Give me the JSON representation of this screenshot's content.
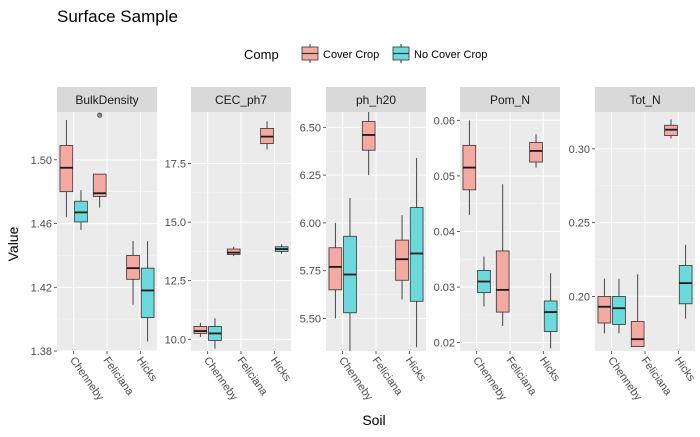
{
  "chart_data": {
    "type": "boxplot",
    "title": "Surface Sample",
    "xlabel": "Soil",
    "ylabel": "Value",
    "legend": {
      "title": "Comp",
      "position": "top",
      "entries": [
        {
          "name": "Cover Crop",
          "color": "#F8766D",
          "fill": "#F4A9A3"
        },
        {
          "name": "No Cover Crop",
          "color": "#00BFC4",
          "fill": "#6CD9DC"
        }
      ]
    },
    "categories": [
      "Chenneby",
      "Feliciana",
      "Hicks"
    ],
    "grid": true,
    "panels": [
      {
        "name": "BulkDensity",
        "ylim": [
          1.38,
          1.53
        ],
        "yticks": [
          1.38,
          1.42,
          1.46,
          1.5
        ],
        "yticklabels": [
          "1.38",
          "1.42",
          "1.46",
          "1.50"
        ],
        "boxes": [
          {
            "category": "Chenneby",
            "series": "Cover Crop",
            "min": 1.464,
            "q1": 1.48,
            "median": 1.495,
            "q3": 1.509,
            "max": 1.525
          },
          {
            "category": "Chenneby",
            "series": "No Cover Crop",
            "min": 1.456,
            "q1": 1.461,
            "median": 1.467,
            "q3": 1.474,
            "max": 1.481
          },
          {
            "category": "Feliciana",
            "series": "Cover Crop",
            "min": 1.47,
            "q1": 1.477,
            "median": 1.479,
            "q3": 1.491,
            "max": 1.491,
            "outliers": [
              1.528
            ]
          },
          {
            "category": "Hicks",
            "series": "Cover Crop",
            "min": 1.409,
            "q1": 1.425,
            "median": 1.432,
            "q3": 1.44,
            "max": 1.449
          },
          {
            "category": "Hicks",
            "series": "No Cover Crop",
            "min": 1.386,
            "q1": 1.401,
            "median": 1.418,
            "q3": 1.432,
            "max": 1.449
          }
        ]
      },
      {
        "name": "CEC_ph7",
        "ylim": [
          9.5,
          19.7
        ],
        "yticks": [
          10.0,
          12.5,
          15.0,
          17.5
        ],
        "yticklabels": [
          "10.0",
          "12.5",
          "15.0",
          "17.5"
        ],
        "boxes": [
          {
            "category": "Chenneby",
            "series": "Cover Crop",
            "min": 10.1,
            "q1": 10.25,
            "median": 10.35,
            "q3": 10.55,
            "max": 10.7
          },
          {
            "category": "Chenneby",
            "series": "No Cover Crop",
            "min": 9.6,
            "q1": 9.95,
            "median": 10.25,
            "q3": 10.55,
            "max": 10.9
          },
          {
            "category": "Feliciana",
            "series": "Cover Crop",
            "min": 13.55,
            "q1": 13.62,
            "median": 13.7,
            "q3": 13.85,
            "max": 13.95
          },
          {
            "category": "Hicks",
            "series": "Cover Crop",
            "min": 18.1,
            "q1": 18.35,
            "median": 18.65,
            "q3": 19.0,
            "max": 19.3
          },
          {
            "category": "Hicks",
            "series": "No Cover Crop",
            "min": 13.65,
            "q1": 13.75,
            "median": 13.85,
            "q3": 13.95,
            "max": 14.05
          }
        ]
      },
      {
        "name": "ph_h20",
        "ylim": [
          5.33,
          6.58
        ],
        "yticks": [
          5.5,
          5.75,
          6.0,
          6.25,
          6.5
        ],
        "yticklabels": [
          "5.50",
          "5.75",
          "6.00",
          "6.25",
          "6.50"
        ],
        "boxes": [
          {
            "category": "Chenneby",
            "series": "Cover Crop",
            "min": 5.5,
            "q1": 5.65,
            "median": 5.77,
            "q3": 5.87,
            "max": 6.0
          },
          {
            "category": "Chenneby",
            "series": "No Cover Crop",
            "min": 5.33,
            "q1": 5.53,
            "median": 5.73,
            "q3": 5.93,
            "max": 6.13
          },
          {
            "category": "Feliciana",
            "series": "Cover Crop",
            "min": 6.25,
            "q1": 6.38,
            "median": 6.46,
            "q3": 6.53,
            "max": 6.58
          },
          {
            "category": "Hicks",
            "series": "Cover Crop",
            "min": 5.6,
            "q1": 5.7,
            "median": 5.81,
            "q3": 5.91,
            "max": 6.04
          },
          {
            "category": "Hicks",
            "series": "No Cover Crop",
            "min": 5.35,
            "q1": 5.59,
            "median": 5.84,
            "q3": 6.08,
            "max": 6.34
          }
        ]
      },
      {
        "name": "Pom_N",
        "ylim": [
          0.0185,
          0.0615
        ],
        "yticks": [
          0.02,
          0.03,
          0.04,
          0.05,
          0.06
        ],
        "yticklabels": [
          "0.02",
          "0.03",
          "0.04",
          "0.05",
          "0.06"
        ],
        "boxes": [
          {
            "category": "Chenneby",
            "series": "Cover Crop",
            "min": 0.043,
            "q1": 0.0475,
            "median": 0.0515,
            "q3": 0.0555,
            "max": 0.06
          },
          {
            "category": "Chenneby",
            "series": "No Cover Crop",
            "min": 0.0265,
            "q1": 0.029,
            "median": 0.031,
            "q3": 0.033,
            "max": 0.0355
          },
          {
            "category": "Feliciana",
            "series": "Cover Crop",
            "min": 0.023,
            "q1": 0.0255,
            "median": 0.0295,
            "q3": 0.0365,
            "max": 0.0485
          },
          {
            "category": "Hicks",
            "series": "Cover Crop",
            "min": 0.0515,
            "q1": 0.0525,
            "median": 0.0545,
            "q3": 0.056,
            "max": 0.0575
          },
          {
            "category": "Hicks",
            "series": "No Cover Crop",
            "min": 0.019,
            "q1": 0.022,
            "median": 0.0255,
            "q3": 0.0275,
            "max": 0.0325
          }
        ]
      },
      {
        "name": "Tot_N",
        "ylim": [
          0.163,
          0.325
        ],
        "yticks": [
          0.2,
          0.25,
          0.3
        ],
        "yticklabels": [
          "0.20",
          "0.25",
          "0.30"
        ],
        "boxes": [
          {
            "category": "Chenneby",
            "series": "Cover Crop",
            "min": 0.175,
            "q1": 0.182,
            "median": 0.193,
            "q3": 0.2,
            "max": 0.212
          },
          {
            "category": "Chenneby",
            "series": "No Cover Crop",
            "min": 0.175,
            "q1": 0.181,
            "median": 0.192,
            "q3": 0.2,
            "max": 0.212
          },
          {
            "category": "Feliciana",
            "series": "Cover Crop",
            "min": 0.166,
            "q1": 0.166,
            "median": 0.171,
            "q3": 0.183,
            "max": 0.215
          },
          {
            "category": "Hicks",
            "series": "Cover Crop",
            "min": 0.307,
            "q1": 0.309,
            "median": 0.313,
            "q3": 0.316,
            "max": 0.32
          },
          {
            "category": "Hicks",
            "series": "No Cover Crop",
            "min": 0.185,
            "q1": 0.195,
            "median": 0.209,
            "q3": 0.221,
            "max": 0.235
          }
        ]
      }
    ]
  }
}
